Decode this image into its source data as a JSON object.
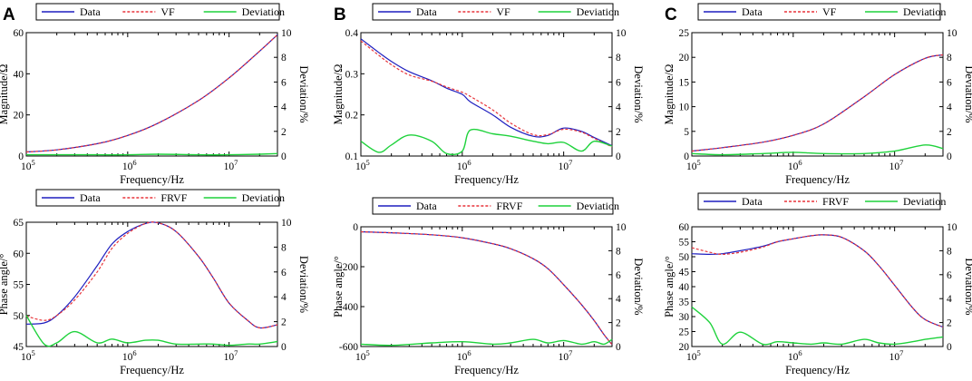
{
  "colors": {
    "data": "#1f1fbf",
    "fit": "#e8343a",
    "deviation": "#1fd23c"
  },
  "chart_data": [
    {
      "type": "line",
      "panel": "A",
      "legend": [
        "Data",
        "VF",
        "Deviation"
      ],
      "xlabel": "Frequency/Hz",
      "ylabel": "Magnitude/Ω",
      "y2label": "Deviation/%",
      "xscale": "log",
      "xlim": [
        100000,
        30000000
      ],
      "ylim": [
        0,
        60
      ],
      "y2lim": [
        0,
        10
      ],
      "xticks": [
        {
          "v": 100000,
          "b": "10",
          "e": "5"
        },
        {
          "v": 1000000,
          "b": "10",
          "e": "6"
        },
        {
          "v": 10000000,
          "b": "10",
          "e": "7"
        }
      ],
      "yticks": [
        "0",
        "20",
        "40",
        "60"
      ],
      "y2ticks": [
        "0",
        "2",
        "4",
        "6",
        "8",
        "10"
      ],
      "x": [
        100000,
        200000,
        500000,
        1000000,
        2000000,
        5000000,
        10000000,
        20000000,
        30000000
      ],
      "series": [
        {
          "name": "Data",
          "values": [
            2,
            3,
            6,
            10,
            16,
            27,
            38,
            51,
            59
          ]
        },
        {
          "name": "VF",
          "values": [
            2,
            3,
            6,
            10,
            16,
            27,
            38,
            51,
            59
          ]
        },
        {
          "name": "Deviation",
          "axis": "right",
          "values": [
            0.1,
            0.1,
            0.1,
            0.1,
            0.15,
            0.1,
            0.1,
            0.15,
            0.2
          ]
        }
      ]
    },
    {
      "type": "line",
      "panel": "B",
      "legend": [
        "Data",
        "VF",
        "Deviation"
      ],
      "xlabel": "Frequency/Hz",
      "ylabel": "Magnitude/Ω",
      "y2label": "Deviation/%",
      "xscale": "log",
      "xlim": [
        100000,
        30000000
      ],
      "ylim": [
        0.1,
        0.4
      ],
      "y2lim": [
        0,
        10
      ],
      "xticks": [
        {
          "v": 100000,
          "b": "10",
          "e": "5"
        },
        {
          "v": 1000000,
          "b": "10",
          "e": "6"
        },
        {
          "v": 10000000,
          "b": "10",
          "e": "7"
        }
      ],
      "yticks": [
        "0.1",
        "0.2",
        "0.3",
        "0.4"
      ],
      "y2ticks": [
        "0",
        "2",
        "4",
        "6",
        "8",
        "10"
      ],
      "x": [
        100000,
        150000,
        200000,
        300000,
        500000,
        700000,
        1000000,
        1200000,
        2000000,
        3000000,
        5000000,
        7000000,
        10000000,
        15000000,
        20000000,
        30000000
      ],
      "series": [
        {
          "name": "Data",
          "values": [
            0.385,
            0.352,
            0.33,
            0.305,
            0.283,
            0.265,
            0.25,
            0.232,
            0.2,
            0.17,
            0.148,
            0.15,
            0.168,
            0.16,
            0.145,
            0.125
          ]
        },
        {
          "name": "VF",
          "values": [
            0.38,
            0.345,
            0.322,
            0.297,
            0.282,
            0.268,
            0.255,
            0.245,
            0.212,
            0.18,
            0.152,
            0.152,
            0.165,
            0.158,
            0.143,
            0.122
          ]
        },
        {
          "name": "Deviation",
          "axis": "right",
          "values": [
            1.2,
            0.3,
            0.9,
            1.7,
            1.2,
            0.2,
            0.4,
            2.1,
            1.8,
            1.6,
            1.2,
            1.0,
            1.1,
            0.4,
            1.2,
            0.8
          ]
        }
      ]
    },
    {
      "type": "line",
      "panel": "C",
      "legend": [
        "Data",
        "VF",
        "Deviation"
      ],
      "xlabel": "Frequency/Hz",
      "ylabel": "Magnitude/Ω",
      "y2label": "Deviation/%",
      "xscale": "log",
      "xlim": [
        100000,
        30000000
      ],
      "ylim": [
        0,
        25
      ],
      "y2lim": [
        0,
        10
      ],
      "xticks": [
        {
          "v": 100000,
          "b": "10",
          "e": "5"
        },
        {
          "v": 1000000,
          "b": "10",
          "e": "6"
        },
        {
          "v": 10000000,
          "b": "10",
          "e": "7"
        }
      ],
      "yticks": [
        "0",
        "5",
        "10",
        "15",
        "20",
        "25"
      ],
      "y2ticks": [
        "0",
        "2",
        "4",
        "6",
        "8",
        "10"
      ],
      "x": [
        100000,
        200000,
        500000,
        1000000,
        2000000,
        5000000,
        10000000,
        20000000,
        30000000
      ],
      "series": [
        {
          "name": "Data",
          "values": [
            1,
            1.7,
            2.8,
            4.2,
            6.5,
            12,
            16.5,
            19.8,
            20.5
          ]
        },
        {
          "name": "VF",
          "values": [
            1,
            1.7,
            2.8,
            4.2,
            6.5,
            12,
            16.5,
            19.8,
            20.5
          ]
        },
        {
          "name": "Deviation",
          "axis": "right",
          "values": [
            0.2,
            0.1,
            0.2,
            0.3,
            0.2,
            0.2,
            0.4,
            0.9,
            0.6
          ]
        }
      ]
    },
    {
      "type": "line",
      "panel": "A2",
      "legend": [
        "Data",
        "FRVF",
        "Deviation"
      ],
      "xlabel": "Frequency/Hz",
      "ylabel": "Phase angle/°",
      "y2label": "Deviation/%",
      "xscale": "log",
      "xlim": [
        100000,
        30000000
      ],
      "ylim": [
        45,
        65
      ],
      "y2lim": [
        0,
        10
      ],
      "xticks": [
        {
          "v": 100000,
          "b": "10",
          "e": "5"
        },
        {
          "v": 1000000,
          "b": "10",
          "e": "6"
        },
        {
          "v": 10000000,
          "b": "10",
          "e": "7"
        }
      ],
      "yticks": [
        "45",
        "50",
        "55",
        "60",
        "65"
      ],
      "y2ticks": [
        "0",
        "2",
        "4",
        "6",
        "8",
        "10"
      ],
      "x": [
        100000,
        150000,
        200000,
        300000,
        500000,
        700000,
        1000000,
        1500000,
        2000000,
        3000000,
        5000000,
        7000000,
        10000000,
        15000000,
        20000000,
        30000000
      ],
      "series": [
        {
          "name": "Data",
          "values": [
            48.6,
            48.8,
            50,
            53,
            58,
            61.5,
            63.5,
            64.8,
            64.9,
            63.5,
            59.5,
            56,
            52,
            49.3,
            48,
            48.5
          ]
        },
        {
          "name": "FRVF",
          "values": [
            49.9,
            49.2,
            50,
            52.5,
            57,
            60.8,
            63.2,
            64.8,
            64.9,
            63.5,
            59.5,
            56,
            52,
            49.3,
            48,
            48.5
          ]
        },
        {
          "name": "Deviation",
          "axis": "right",
          "values": [
            2.5,
            0.2,
            0.3,
            1.2,
            0.3,
            0.6,
            0.3,
            0.5,
            0.5,
            0.2,
            0.2,
            0.2,
            0.1,
            0.2,
            0.2,
            0.4
          ]
        }
      ]
    },
    {
      "type": "line",
      "panel": "B2",
      "legend": [
        "Data",
        "FRVF",
        "Deviation"
      ],
      "xlabel": "Frequency/Hz",
      "ylabel": "Phase angle/°",
      "y2label": "Deviation/%",
      "xscale": "log",
      "xlim": [
        100000,
        30000000
      ],
      "ylim": [
        -600,
        0
      ],
      "y2lim": [
        0,
        10
      ],
      "xticks": [
        {
          "v": 100000,
          "b": "10",
          "e": "5"
        },
        {
          "v": 1000000,
          "b": "10",
          "e": "6"
        },
        {
          "v": 10000000,
          "b": "10",
          "e": "7"
        }
      ],
      "yticks": [
        "-600",
        "-400",
        "-200",
        "0"
      ],
      "y2ticks": [
        "0",
        "2",
        "4",
        "6",
        "8",
        "10"
      ],
      "x": [
        100000,
        200000,
        500000,
        1000000,
        2000000,
        3000000,
        5000000,
        7000000,
        10000000,
        15000000,
        20000000,
        25000000,
        30000000
      ],
      "series": [
        {
          "name": "Data",
          "values": [
            -25,
            -30,
            -40,
            -55,
            -85,
            -110,
            -160,
            -210,
            -290,
            -390,
            -470,
            -540,
            -590
          ]
        },
        {
          "name": "FRVF",
          "values": [
            -25,
            -30,
            -40,
            -55,
            -85,
            -110,
            -160,
            -210,
            -290,
            -390,
            -470,
            -540,
            -590
          ]
        },
        {
          "name": "Deviation",
          "axis": "right",
          "values": [
            0.2,
            0.1,
            0.3,
            0.4,
            0.2,
            0.3,
            0.6,
            0.3,
            0.5,
            0.2,
            0.4,
            0.2,
            0.6
          ]
        }
      ]
    },
    {
      "type": "line",
      "panel": "C2",
      "legend": [
        "Data",
        "FRVF",
        "Deviation"
      ],
      "xlabel": "Frequency/Hz",
      "ylabel": "Phase angle/°",
      "y2label": "Deviation/%",
      "xscale": "log",
      "xlim": [
        100000,
        30000000
      ],
      "ylim": [
        20,
        60
      ],
      "y2lim": [
        0,
        10
      ],
      "xticks": [
        {
          "v": 100000,
          "b": "10",
          "e": "5"
        },
        {
          "v": 1000000,
          "b": "10",
          "e": "6"
        },
        {
          "v": 10000000,
          "b": "10",
          "e": "7"
        }
      ],
      "yticks": [
        "20",
        "25",
        "30",
        "35",
        "40",
        "45",
        "50",
        "55",
        "60"
      ],
      "y2ticks": [
        "0",
        "2",
        "4",
        "6",
        "8",
        "10"
      ],
      "x": [
        100000,
        150000,
        200000,
        300000,
        500000,
        700000,
        1000000,
        1500000,
        2000000,
        3000000,
        5000000,
        7000000,
        10000000,
        15000000,
        20000000,
        30000000
      ],
      "series": [
        {
          "name": "Data",
          "values": [
            51,
            50.8,
            51,
            52,
            53.5,
            55,
            56,
            57,
            57.3,
            56.5,
            52,
            47,
            40.5,
            33,
            29,
            26.5
          ]
        },
        {
          "name": "FRVF",
          "values": [
            53,
            51.5,
            50.8,
            51.5,
            53.2,
            55,
            56,
            57,
            57.3,
            56.5,
            52,
            47,
            40.5,
            33,
            29,
            26.5
          ]
        },
        {
          "name": "Deviation",
          "axis": "right",
          "values": [
            3.3,
            2.0,
            0.2,
            1.2,
            0.2,
            0.4,
            0.3,
            0.2,
            0.3,
            0.2,
            0.6,
            0.3,
            0.2,
            0.4,
            0.6,
            0.8
          ]
        }
      ]
    }
  ]
}
